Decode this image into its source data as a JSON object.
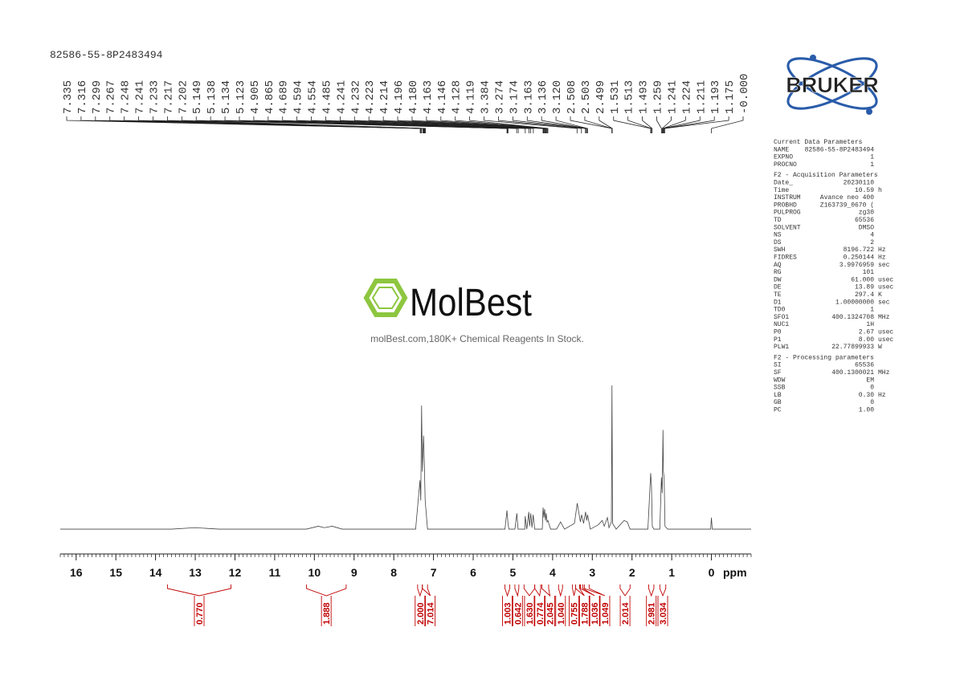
{
  "chart_data": {
    "type": "nmr",
    "title": "82586-55-8P2483494",
    "x_label": "ppm",
    "xlim": [
      16.4,
      -1.0
    ],
    "ylim": [
      -5,
      100
    ],
    "xticks": [
      16,
      15,
      14,
      13,
      12,
      11,
      10,
      9,
      8,
      7,
      6,
      5,
      4,
      3,
      2,
      1,
      0
    ],
    "color": "#444444",
    "integral_color": "#c00000",
    "x": [
      16.4,
      13.6,
      13.0,
      12.4,
      10.2,
      9.9,
      9.75,
      9.55,
      9.3,
      7.45,
      7.34,
      7.32,
      7.3,
      7.28,
      7.25,
      7.23,
      7.21,
      7.15,
      5.2,
      5.15,
      5.12,
      5.1,
      4.95,
      4.9,
      4.87,
      4.7,
      4.69,
      4.65,
      4.6,
      4.58,
      4.55,
      4.52,
      4.49,
      4.45,
      4.26,
      4.24,
      4.22,
      4.2,
      4.18,
      4.16,
      4.14,
      4.12,
      4.05,
      3.9,
      3.8,
      3.7,
      3.45,
      3.38,
      3.3,
      3.27,
      3.22,
      3.17,
      3.14,
      3.12,
      3.05,
      2.85,
      2.75,
      2.7,
      2.62,
      2.58,
      2.52,
      2.505,
      2.49,
      2.4,
      2.2,
      2.12,
      2.05,
      1.6,
      1.53,
      1.51,
      1.49,
      1.45,
      1.3,
      1.26,
      1.24,
      1.22,
      1.21,
      1.19,
      1.17,
      1.1,
      0.02,
      0.0,
      -0.02,
      -1.0
    ],
    "values": [
      0,
      0,
      1,
      0,
      0,
      2,
      1,
      2,
      0,
      0,
      34,
      20,
      86,
      40,
      65,
      45,
      20,
      0,
      0,
      13,
      3,
      0,
      0,
      11,
      0,
      0,
      9,
      0,
      12,
      2,
      11,
      1,
      10,
      0,
      0,
      15,
      8,
      14,
      6,
      11,
      5,
      6,
      0,
      0,
      5,
      0,
      4,
      18,
      5,
      10,
      4,
      12,
      6,
      10,
      0,
      3,
      6,
      2,
      8,
      1,
      5,
      100,
      4,
      0,
      6,
      5,
      0,
      0,
      39,
      30,
      2,
      0,
      0,
      36,
      25,
      69,
      40,
      35,
      2,
      0,
      0,
      8,
      0,
      0
    ],
    "peaks": [
      7.335,
      7.316,
      7.299,
      7.267,
      7.248,
      7.241,
      7.233,
      7.217,
      7.202,
      5.149,
      5.138,
      5.134,
      5.123,
      4.905,
      4.865,
      4.689,
      4.594,
      4.554,
      4.485,
      4.241,
      4.232,
      4.223,
      4.214,
      4.196,
      {
        "value": 4.18,
        "label": "4.180"
      },
      4.163,
      4.146,
      4.128,
      4.119,
      3.384,
      3.274,
      3.174,
      3.163,
      3.136,
      {
        "value": 3.12,
        "label": "3.120"
      },
      2.508,
      2.503,
      2.499,
      1.531,
      1.513,
      1.493,
      1.259,
      1.241,
      1.224,
      1.211,
      1.193,
      1.175,
      {
        "value": 0,
        "label": "-0.000"
      }
    ],
    "integrals": [
      {
        "from": 13.7,
        "to": 12.1,
        "value": 0.77,
        "label": "0.770"
      },
      {
        "from": 10.2,
        "to": 9.2,
        "value": 1.888
      },
      {
        "from": 7.4,
        "to": 7.28,
        "value": 2.0,
        "label": "2.000"
      },
      {
        "from": 7.28,
        "to": 7.15,
        "value": 7.014
      },
      {
        "from": 5.2,
        "to": 5.08,
        "value": 1.003
      },
      {
        "from": 4.95,
        "to": 4.85,
        "value": 0.642
      },
      {
        "from": 4.72,
        "to": 4.45,
        "value": 1.63,
        "label": "1.630"
      },
      {
        "from": 4.45,
        "to": 4.3,
        "value": 0.774
      },
      {
        "from": 4.27,
        "to": 4.1,
        "value": 2.045
      },
      {
        "from": 3.85,
        "to": 3.75,
        "value": 1.04,
        "label": "1.040"
      },
      {
        "from": 3.5,
        "to": 3.42,
        "value": 0.755
      },
      {
        "from": 3.42,
        "to": 3.32,
        "value": 1.788
      },
      {
        "from": 3.3,
        "to": 3.24,
        "value": 1.036
      },
      {
        "from": 3.2,
        "to": 3.08,
        "value": 1.049
      },
      {
        "from": 2.3,
        "to": 2.05,
        "value": 2.014
      },
      {
        "from": 1.58,
        "to": 1.45,
        "value": 2.981
      },
      {
        "from": 1.3,
        "to": 1.15,
        "value": 3.034
      }
    ]
  },
  "logo": "BRUKER",
  "watermark": {
    "name": "MolBest",
    "tagline": "molBest.com,180K+ Chemical Reagents In Stock."
  },
  "parameters": [
    {
      "title": "Current Data Parameters",
      "rows": [
        [
          "NAME",
          "82586-55-8P2483494"
        ],
        [
          "EXPNO",
          "1"
        ],
        [
          "PROCNO",
          "1"
        ]
      ]
    },
    {
      "title": "F2 - Acquisition Parameters",
      "rows": [
        [
          "Date_",
          "20230110"
        ],
        [
          "Time",
          "10.59",
          "h"
        ],
        [
          "INSTRUM",
          "Avance neo 400"
        ],
        [
          "PROBHD",
          "Z163739_0670 ("
        ],
        [
          "PULPROG",
          "zg30"
        ],
        [
          "TD",
          "65536"
        ],
        [
          "SOLVENT",
          "DMSO"
        ],
        [
          "NS",
          "4"
        ],
        [
          "DS",
          "2"
        ],
        [
          "SWH",
          "8196.722",
          "Hz"
        ],
        [
          "FIDRES",
          "0.250144",
          "Hz"
        ],
        [
          "AQ",
          "3.9976959",
          "sec"
        ],
        [
          "RG",
          "101"
        ],
        [
          "DW",
          "61.000",
          "usec"
        ],
        [
          "DE",
          "13.89",
          "usec"
        ],
        [
          "TE",
          "297.4",
          "K"
        ],
        [
          "D1",
          "1.00000000",
          "sec"
        ],
        [
          "TD0",
          "1"
        ],
        [
          "SFO1",
          "400.1324708",
          "MHz"
        ],
        [
          "NUC1",
          "1H"
        ],
        [
          "P0",
          "2.67",
          "usec"
        ],
        [
          "P1",
          "8.00",
          "usec"
        ],
        [
          "PLW1",
          "22.77899933",
          "W"
        ]
      ]
    },
    {
      "title": "F2 - Processing parameters",
      "rows": [
        [
          "SI",
          "65536"
        ],
        [
          "SF",
          "400.1300021",
          "MHz"
        ],
        [
          "WDW",
          "EM"
        ],
        [
          "SSB",
          "0"
        ],
        [
          "LB",
          "0.30",
          "Hz"
        ],
        [
          "GB",
          "0"
        ],
        [
          "PC",
          "1.00"
        ]
      ]
    }
  ]
}
